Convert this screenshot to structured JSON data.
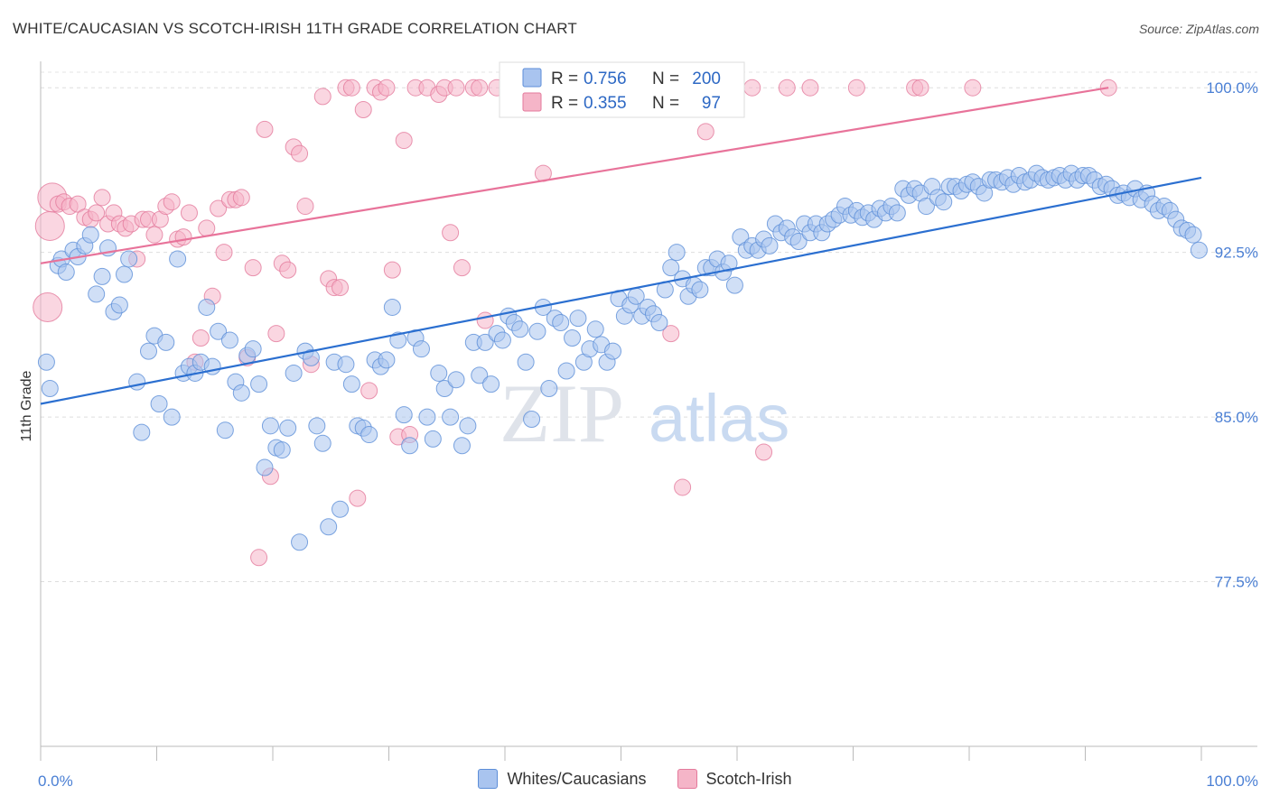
{
  "header": {
    "title": "WHITE/CAUCASIAN VS SCOTCH-IRISH 11TH GRADE CORRELATION CHART",
    "source": "Source: ZipAtlas.com"
  },
  "watermark": {
    "zip": "ZIP",
    "atlas": "atlas"
  },
  "legend": {
    "rows": [
      {
        "r_label": "R = ",
        "r_value": "0.756",
        "n_label": "N = ",
        "n_value": "200",
        "color": "#a9c4ef"
      },
      {
        "r_label": "R = ",
        "r_value": "0.355",
        "n_label": "N = ",
        "n_value": "97",
        "color": "#f5b5c8"
      }
    ],
    "bottom": [
      {
        "label": "Whites/Caucasians",
        "color": "#a9c4ef"
      },
      {
        "label": "Scotch-Irish",
        "color": "#f5b5c8"
      }
    ]
  },
  "colors": {
    "blue_fill": "#a9c4ef",
    "blue_stroke": "#5d8ed8",
    "blue_line": "#2b6fd0",
    "pink_fill": "#f5b5c8",
    "pink_stroke": "#e47a9c",
    "pink_line": "#e8739a",
    "value_text": "#2d68c4"
  },
  "chart_data": {
    "type": "scatter",
    "title": "WHITE/CAUCASIAN VS SCOTCH-IRISH 11TH GRADE CORRELATION CHART",
    "xlabel": "",
    "ylabel": "11th Grade",
    "xlim": [
      0,
      100
    ],
    "ylim": [
      70.0,
      101.2
    ],
    "x_tick_labels": [
      "0.0%",
      "100.0%"
    ],
    "y_ticks": [
      77.5,
      85.0,
      92.5,
      100.0
    ],
    "y_tick_labels": [
      "77.5%",
      "85.0%",
      "92.5%",
      "100.0%"
    ],
    "grid": true,
    "legend_position": "top-center",
    "series": [
      {
        "name": "Whites/Caucasians",
        "r": 0.756,
        "n": 200,
        "trend": [
          [
            0,
            85.6
          ],
          [
            100,
            95.9
          ]
        ],
        "points": [
          [
            0.5,
            87.5
          ],
          [
            0.8,
            86.3
          ],
          [
            1.5,
            91.9
          ],
          [
            1.8,
            92.2
          ],
          [
            2.2,
            91.6
          ],
          [
            2.8,
            92.6
          ],
          [
            3.2,
            92.3
          ],
          [
            3.8,
            92.8
          ],
          [
            4.3,
            93.3
          ],
          [
            4.8,
            90.6
          ],
          [
            5.3,
            91.4
          ],
          [
            5.8,
            92.7
          ],
          [
            6.3,
            89.8
          ],
          [
            6.8,
            90.1
          ],
          [
            7.2,
            91.5
          ],
          [
            7.6,
            92.2
          ],
          [
            8.3,
            86.6
          ],
          [
            8.7,
            84.3
          ],
          [
            9.3,
            88.0
          ],
          [
            9.8,
            88.7
          ],
          [
            10.2,
            85.6
          ],
          [
            10.8,
            88.4
          ],
          [
            11.3,
            85.0
          ],
          [
            11.8,
            92.2
          ],
          [
            12.3,
            87.0
          ],
          [
            12.8,
            87.3
          ],
          [
            13.3,
            87.0
          ],
          [
            13.8,
            87.5
          ],
          [
            14.3,
            90.0
          ],
          [
            14.8,
            87.3
          ],
          [
            15.3,
            88.9
          ],
          [
            15.9,
            84.4
          ],
          [
            16.3,
            88.5
          ],
          [
            16.8,
            86.6
          ],
          [
            17.3,
            86.1
          ],
          [
            17.8,
            87.8
          ],
          [
            18.3,
            88.1
          ],
          [
            18.8,
            86.5
          ],
          [
            19.3,
            82.7
          ],
          [
            19.8,
            84.6
          ],
          [
            20.3,
            83.6
          ],
          [
            20.8,
            83.5
          ],
          [
            21.3,
            84.5
          ],
          [
            21.8,
            87.0
          ],
          [
            22.3,
            79.3
          ],
          [
            22.8,
            88.0
          ],
          [
            23.3,
            87.7
          ],
          [
            23.8,
            84.6
          ],
          [
            24.3,
            83.8
          ],
          [
            24.8,
            80.0
          ],
          [
            25.3,
            87.5
          ],
          [
            25.8,
            80.8
          ],
          [
            26.3,
            87.4
          ],
          [
            26.8,
            86.5
          ],
          [
            27.3,
            84.6
          ],
          [
            27.8,
            84.5
          ],
          [
            28.3,
            84.2
          ],
          [
            28.8,
            87.6
          ],
          [
            29.3,
            87.3
          ],
          [
            29.8,
            87.6
          ],
          [
            30.3,
            90.0
          ],
          [
            30.8,
            88.5
          ],
          [
            31.3,
            85.1
          ],
          [
            31.8,
            83.7
          ],
          [
            32.3,
            88.6
          ],
          [
            32.8,
            88.1
          ],
          [
            33.3,
            85.0
          ],
          [
            33.8,
            84.0
          ],
          [
            34.3,
            87.0
          ],
          [
            34.8,
            86.3
          ],
          [
            35.3,
            85.0
          ],
          [
            35.8,
            86.7
          ],
          [
            36.3,
            83.7
          ],
          [
            36.8,
            84.6
          ],
          [
            37.3,
            88.4
          ],
          [
            37.8,
            86.9
          ],
          [
            38.3,
            88.4
          ],
          [
            38.8,
            86.5
          ],
          [
            39.3,
            88.8
          ],
          [
            39.8,
            88.5
          ],
          [
            40.3,
            89.6
          ],
          [
            40.8,
            89.3
          ],
          [
            41.3,
            89.0
          ],
          [
            41.8,
            87.5
          ],
          [
            42.3,
            84.9
          ],
          [
            42.8,
            88.9
          ],
          [
            43.3,
            90.0
          ],
          [
            43.8,
            86.3
          ],
          [
            44.3,
            89.5
          ],
          [
            44.8,
            89.3
          ],
          [
            45.3,
            87.1
          ],
          [
            45.8,
            88.6
          ],
          [
            46.3,
            89.5
          ],
          [
            46.8,
            87.5
          ],
          [
            47.3,
            88.1
          ],
          [
            47.8,
            89.0
          ],
          [
            48.3,
            88.3
          ],
          [
            48.8,
            87.5
          ],
          [
            49.3,
            88.0
          ],
          [
            49.8,
            90.4
          ],
          [
            50.3,
            89.6
          ],
          [
            50.8,
            90.1
          ],
          [
            51.3,
            90.5
          ],
          [
            51.8,
            89.6
          ],
          [
            52.3,
            90.0
          ],
          [
            52.8,
            89.7
          ],
          [
            53.3,
            89.3
          ],
          [
            53.8,
            90.8
          ],
          [
            54.3,
            91.8
          ],
          [
            54.8,
            92.5
          ],
          [
            55.3,
            91.3
          ],
          [
            55.8,
            90.5
          ],
          [
            56.3,
            91.0
          ],
          [
            56.8,
            90.8
          ],
          [
            57.3,
            91.8
          ],
          [
            57.8,
            91.8
          ],
          [
            58.3,
            92.2
          ],
          [
            58.8,
            91.6
          ],
          [
            59.3,
            92.0
          ],
          [
            59.8,
            91.0
          ],
          [
            60.3,
            93.2
          ],
          [
            60.8,
            92.6
          ],
          [
            61.3,
            92.8
          ],
          [
            61.8,
            92.6
          ],
          [
            62.3,
            93.1
          ],
          [
            62.8,
            92.8
          ],
          [
            63.3,
            93.8
          ],
          [
            63.8,
            93.4
          ],
          [
            64.3,
            93.6
          ],
          [
            64.8,
            93.2
          ],
          [
            65.3,
            93.0
          ],
          [
            65.8,
            93.8
          ],
          [
            66.3,
            93.4
          ],
          [
            66.8,
            93.8
          ],
          [
            67.3,
            93.4
          ],
          [
            67.8,
            93.8
          ],
          [
            68.3,
            94.0
          ],
          [
            68.8,
            94.2
          ],
          [
            69.3,
            94.6
          ],
          [
            69.8,
            94.2
          ],
          [
            70.3,
            94.4
          ],
          [
            70.8,
            94.1
          ],
          [
            71.3,
            94.3
          ],
          [
            71.8,
            94.0
          ],
          [
            72.3,
            94.5
          ],
          [
            72.8,
            94.3
          ],
          [
            73.3,
            94.6
          ],
          [
            73.8,
            94.3
          ],
          [
            74.3,
            95.4
          ],
          [
            74.8,
            95.1
          ],
          [
            75.3,
            95.4
          ],
          [
            75.8,
            95.2
          ],
          [
            76.3,
            94.6
          ],
          [
            76.8,
            95.5
          ],
          [
            77.3,
            95.0
          ],
          [
            77.8,
            94.8
          ],
          [
            78.3,
            95.5
          ],
          [
            78.8,
            95.5
          ],
          [
            79.3,
            95.3
          ],
          [
            79.8,
            95.6
          ],
          [
            80.3,
            95.7
          ],
          [
            80.8,
            95.5
          ],
          [
            81.3,
            95.2
          ],
          [
            81.8,
            95.8
          ],
          [
            82.3,
            95.8
          ],
          [
            82.8,
            95.7
          ],
          [
            83.3,
            95.9
          ],
          [
            83.8,
            95.6
          ],
          [
            84.3,
            96.0
          ],
          [
            84.8,
            95.7
          ],
          [
            85.3,
            95.8
          ],
          [
            85.8,
            96.1
          ],
          [
            86.3,
            95.9
          ],
          [
            86.8,
            95.8
          ],
          [
            87.3,
            95.9
          ],
          [
            87.8,
            96.0
          ],
          [
            88.3,
            95.8
          ],
          [
            88.8,
            96.1
          ],
          [
            89.3,
            95.8
          ],
          [
            89.8,
            96.0
          ],
          [
            90.3,
            96.0
          ],
          [
            90.8,
            95.8
          ],
          [
            91.3,
            95.5
          ],
          [
            91.8,
            95.6
          ],
          [
            92.3,
            95.4
          ],
          [
            92.8,
            95.1
          ],
          [
            93.3,
            95.2
          ],
          [
            93.8,
            95.0
          ],
          [
            94.3,
            95.4
          ],
          [
            94.8,
            94.9
          ],
          [
            95.3,
            95.2
          ],
          [
            95.8,
            94.7
          ],
          [
            96.3,
            94.4
          ],
          [
            96.8,
            94.6
          ],
          [
            97.3,
            94.4
          ],
          [
            97.8,
            94.0
          ],
          [
            98.3,
            93.6
          ],
          [
            98.8,
            93.5
          ],
          [
            99.3,
            93.3
          ],
          [
            99.8,
            92.6
          ]
        ]
      },
      {
        "name": "Scotch-Irish",
        "r": 0.355,
        "n": 97,
        "trend": [
          [
            0,
            92.0
          ],
          [
            92,
            100.0
          ]
        ],
        "points": [
          [
            0.6,
            90.0
          ],
          [
            0.8,
            93.7
          ],
          [
            1.0,
            95.0
          ],
          [
            1.5,
            94.7
          ],
          [
            2.0,
            94.8
          ],
          [
            2.5,
            94.6
          ],
          [
            3.2,
            94.7
          ],
          [
            3.8,
            94.1
          ],
          [
            4.3,
            94.0
          ],
          [
            4.8,
            94.3
          ],
          [
            5.3,
            95.0
          ],
          [
            5.8,
            93.8
          ],
          [
            6.3,
            94.3
          ],
          [
            6.8,
            93.8
          ],
          [
            7.3,
            93.6
          ],
          [
            7.8,
            93.8
          ],
          [
            8.3,
            92.2
          ],
          [
            8.8,
            94.0
          ],
          [
            9.3,
            94.0
          ],
          [
            9.8,
            93.3
          ],
          [
            10.3,
            94.0
          ],
          [
            10.8,
            94.6
          ],
          [
            11.3,
            94.8
          ],
          [
            11.8,
            93.1
          ],
          [
            12.3,
            93.2
          ],
          [
            12.8,
            94.3
          ],
          [
            13.3,
            87.5
          ],
          [
            13.8,
            88.6
          ],
          [
            14.3,
            93.6
          ],
          [
            14.8,
            90.5
          ],
          [
            15.3,
            94.5
          ],
          [
            15.8,
            92.5
          ],
          [
            16.3,
            94.9
          ],
          [
            16.8,
            94.9
          ],
          [
            17.3,
            95.0
          ],
          [
            17.8,
            87.7
          ],
          [
            18.3,
            91.8
          ],
          [
            18.8,
            78.6
          ],
          [
            19.3,
            98.1
          ],
          [
            19.8,
            82.3
          ],
          [
            20.3,
            88.8
          ],
          [
            20.8,
            92.0
          ],
          [
            21.3,
            91.7
          ],
          [
            21.8,
            97.3
          ],
          [
            22.3,
            97.0
          ],
          [
            22.8,
            94.6
          ],
          [
            23.3,
            87.4
          ],
          [
            24.3,
            99.6
          ],
          [
            24.8,
            91.3
          ],
          [
            25.3,
            90.9
          ],
          [
            25.8,
            90.9
          ],
          [
            26.3,
            100.0
          ],
          [
            26.8,
            100.0
          ],
          [
            27.3,
            81.3
          ],
          [
            27.8,
            99.0
          ],
          [
            28.3,
            86.2
          ],
          [
            28.8,
            100.0
          ],
          [
            29.3,
            99.8
          ],
          [
            29.8,
            100.0
          ],
          [
            30.3,
            91.7
          ],
          [
            30.8,
            84.1
          ],
          [
            31.3,
            97.6
          ],
          [
            31.8,
            84.2
          ],
          [
            32.3,
            100.0
          ],
          [
            33.3,
            100.0
          ],
          [
            34.3,
            99.7
          ],
          [
            34.8,
            100.0
          ],
          [
            35.3,
            93.4
          ],
          [
            35.8,
            100.0
          ],
          [
            36.3,
            91.8
          ],
          [
            37.3,
            100.0
          ],
          [
            37.8,
            100.0
          ],
          [
            38.3,
            89.4
          ],
          [
            39.3,
            100.0
          ],
          [
            40.3,
            100.0
          ],
          [
            41.3,
            100.0
          ],
          [
            42.3,
            100.0
          ],
          [
            43.3,
            96.1
          ],
          [
            44.3,
            100.0
          ],
          [
            46.3,
            100.0
          ],
          [
            48.3,
            100.0
          ],
          [
            50.3,
            100.0
          ],
          [
            52.3,
            100.0
          ],
          [
            54.3,
            88.8
          ],
          [
            55.3,
            81.8
          ],
          [
            55.8,
            100.0
          ],
          [
            57.3,
            98.0
          ],
          [
            59.3,
            100.0
          ],
          [
            61.3,
            100.0
          ],
          [
            62.3,
            83.4
          ],
          [
            64.3,
            100.0
          ],
          [
            66.3,
            100.0
          ],
          [
            70.3,
            100.0
          ],
          [
            75.3,
            100.0
          ],
          [
            75.8,
            100.0
          ],
          [
            80.3,
            100.0
          ],
          [
            92.0,
            100.0
          ]
        ]
      }
    ]
  }
}
